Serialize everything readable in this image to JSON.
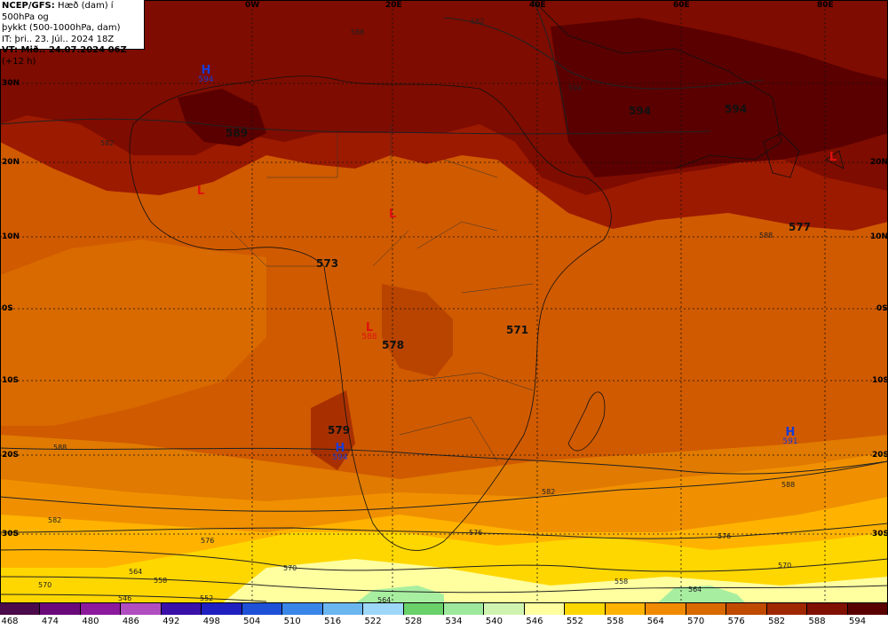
{
  "header": {
    "line1_bold": "NCEP/GFS:",
    "line1_rest": " Hæð (dam) í 500hPa og",
    "line2": "þykkt (500-1000hPa, dam)",
    "line3": "IT: þri.. 23. Júl.. 2024 18Z",
    "line4_bold": "VT: Mið.. 24.07.2024 06Z",
    "line4_rest": " (+12 h)"
  },
  "lon_labels": [
    "0W",
    "20E",
    "40E",
    "60E",
    "80E"
  ],
  "lat_labels": {
    "left": [
      "30N",
      "20N",
      "10N",
      "0S",
      "10S",
      "20S",
      "30S"
    ],
    "right": [
      "20N",
      "10N",
      "0S",
      "10S",
      "20S",
      "30S"
    ]
  },
  "pressure_centers": [
    {
      "type": "H",
      "value": "594",
      "color": "#1a3cd6"
    },
    {
      "type": "L",
      "value": "",
      "color": "#e01010"
    },
    {
      "type": "L",
      "value": "",
      "color": "#e01010"
    },
    {
      "type": "L",
      "value": "588",
      "color": "#e01010"
    },
    {
      "type": "L",
      "value": "",
      "color": "#e01010"
    },
    {
      "type": "H",
      "value": "594",
      "color": "#1a3cd6"
    },
    {
      "type": "H",
      "value": "591",
      "color": "#1a3cd6"
    }
  ],
  "height_values": [
    "589",
    "594",
    "594",
    "577",
    "573",
    "578",
    "571",
    "579"
  ],
  "contour_labels": [
    "582",
    "588",
    "594",
    "588",
    "582",
    "576",
    "570",
    "564",
    "558",
    "552",
    "546",
    "588",
    "582",
    "576",
    "570",
    "564",
    "558",
    "588",
    "582",
    "576",
    "570",
    "564"
  ],
  "colorbar": {
    "labels": [
      "468",
      "474",
      "480",
      "486",
      "492",
      "498",
      "504",
      "510",
      "516",
      "522",
      "528",
      "534",
      "540",
      "546",
      "552",
      "558",
      "564",
      "570",
      "576",
      "582",
      "588",
      "594"
    ],
    "colors": [
      "#4b0a4b",
      "#6a0a7a",
      "#8c1a9c",
      "#b04ec0",
      "#3a10a8",
      "#2020c0",
      "#1e50d8",
      "#3a86e8",
      "#6cb6f0",
      "#9ed8f8",
      "#6ad06a",
      "#9ee89e",
      "#d0f4b0",
      "#ffffa0",
      "#ffd700",
      "#ffb300",
      "#f08a00",
      "#d86a00",
      "#c04a00",
      "#a02800",
      "#801000",
      "#5a0000"
    ]
  }
}
